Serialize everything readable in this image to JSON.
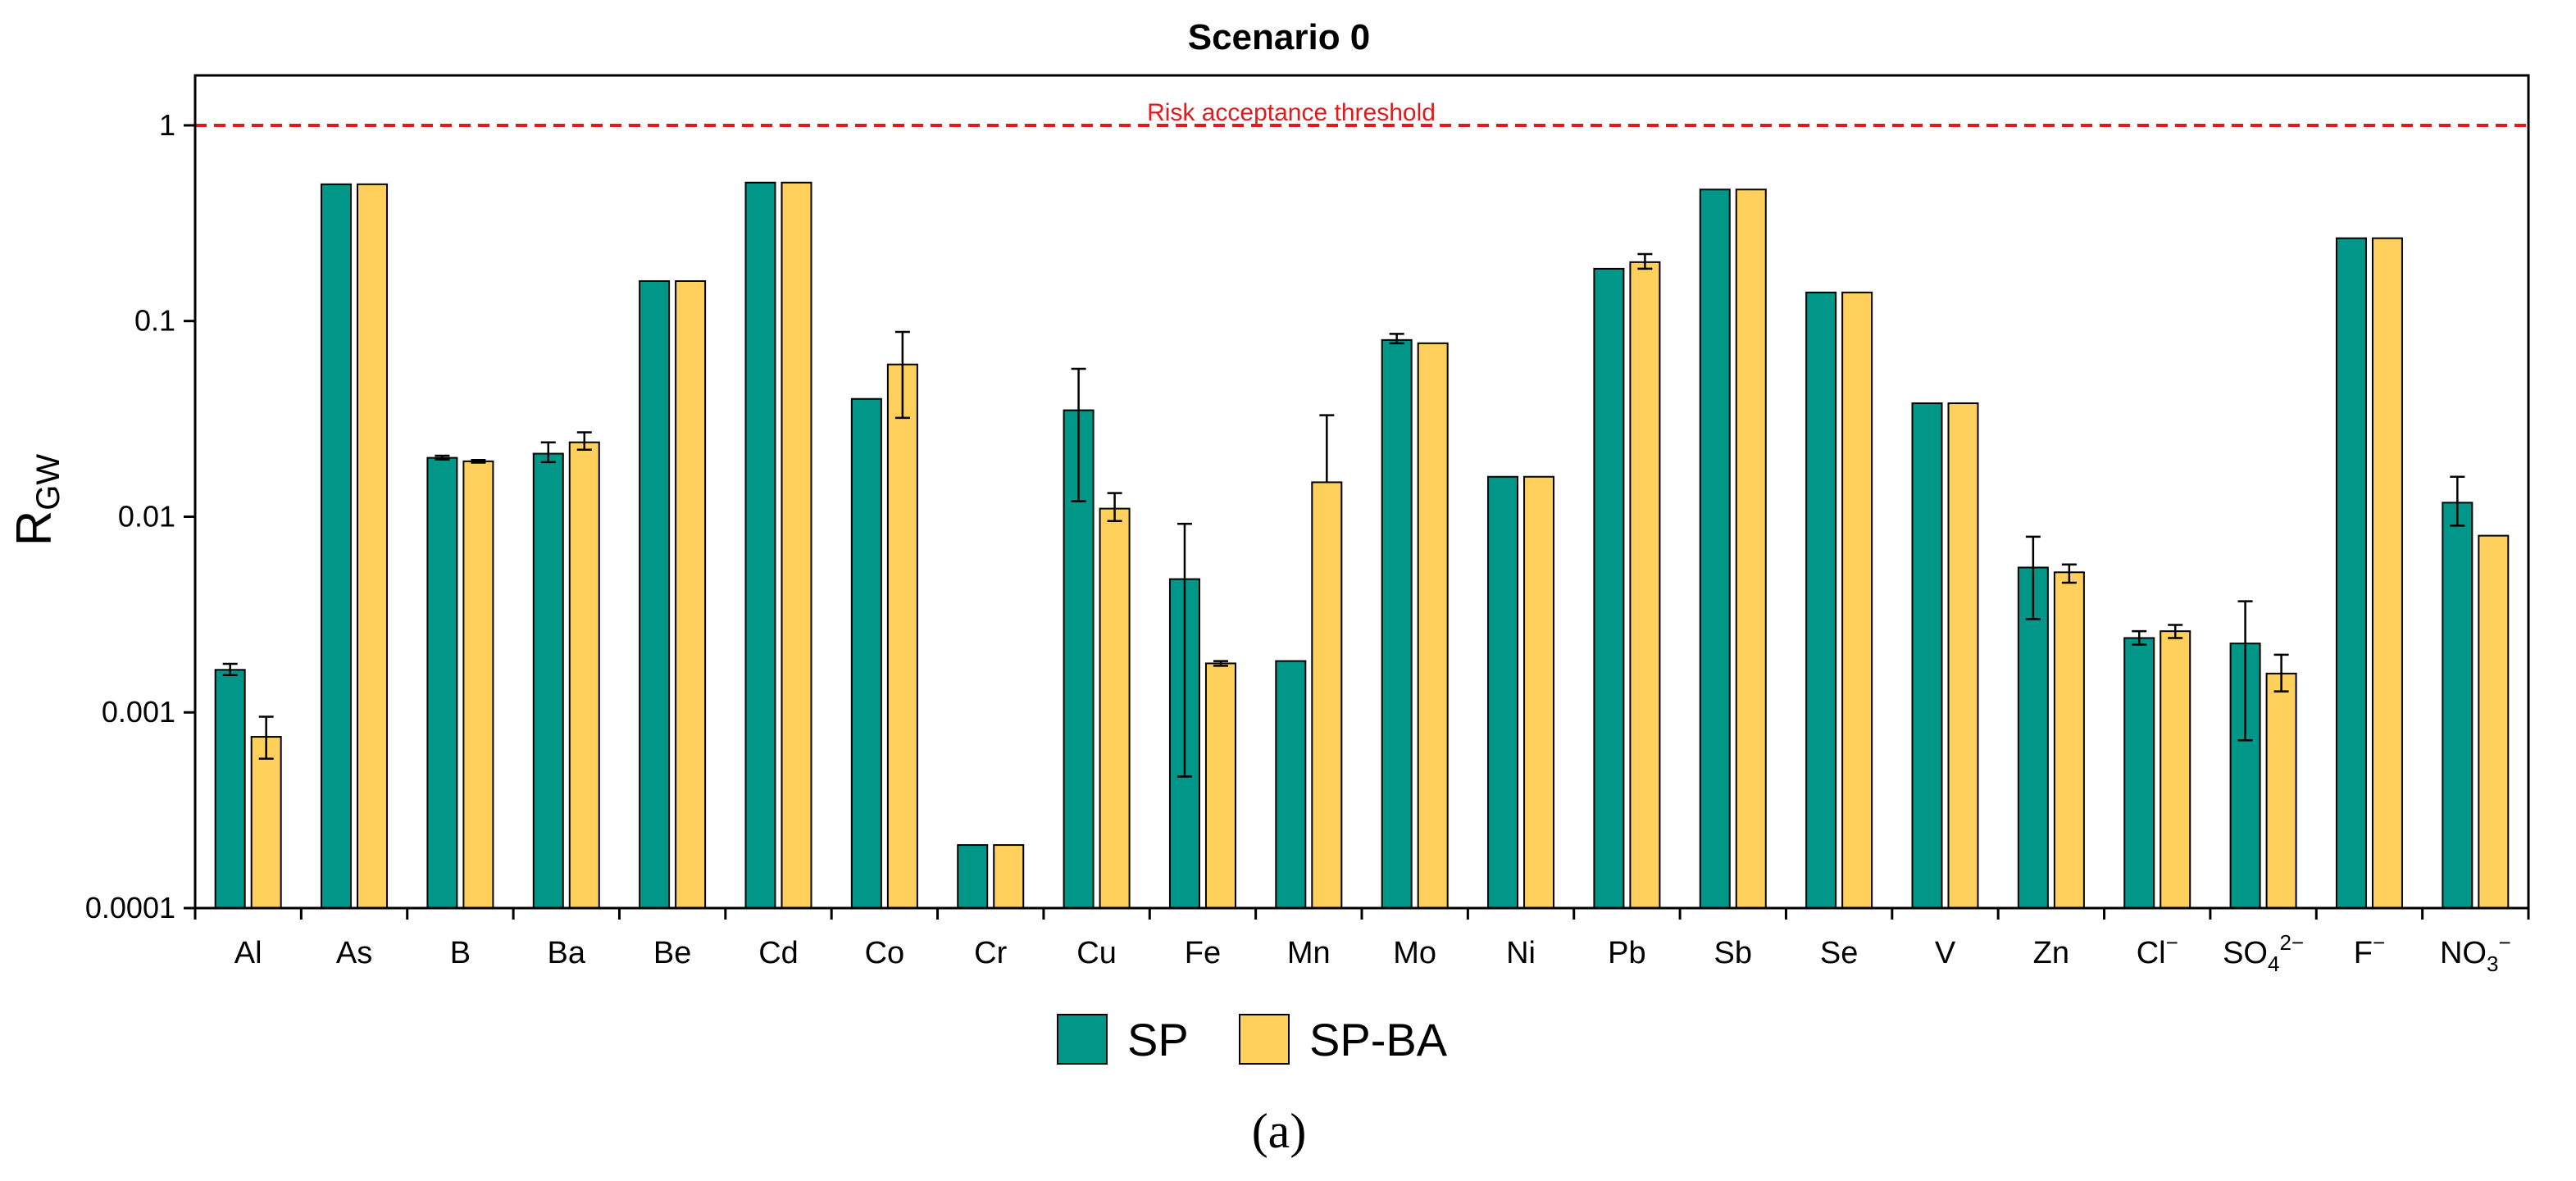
{
  "chart_data": {
    "type": "bar",
    "title": "Scenario 0",
    "ylabel": {
      "main": "R",
      "sub": "GW"
    },
    "yscale": "log",
    "ylim": [
      0.0001,
      1.8
    ],
    "ytick_values": [
      0.0001,
      0.001,
      0.01,
      0.1,
      1
    ],
    "ytick_labels": [
      "0.0001",
      "0.001",
      "0.01",
      "0.1",
      "1"
    ],
    "categories": [
      {
        "base": "Al",
        "sub": "",
        "sup": ""
      },
      {
        "base": "As",
        "sub": "",
        "sup": ""
      },
      {
        "base": "B",
        "sub": "",
        "sup": ""
      },
      {
        "base": "Ba",
        "sub": "",
        "sup": ""
      },
      {
        "base": "Be",
        "sub": "",
        "sup": ""
      },
      {
        "base": "Cd",
        "sub": "",
        "sup": ""
      },
      {
        "base": "Co",
        "sub": "",
        "sup": ""
      },
      {
        "base": "Cr",
        "sub": "",
        "sup": ""
      },
      {
        "base": "Cu",
        "sub": "",
        "sup": ""
      },
      {
        "base": "Fe",
        "sub": "",
        "sup": ""
      },
      {
        "base": "Mn",
        "sub": "",
        "sup": ""
      },
      {
        "base": "Mo",
        "sub": "",
        "sup": ""
      },
      {
        "base": "Ni",
        "sub": "",
        "sup": ""
      },
      {
        "base": "Pb",
        "sub": "",
        "sup": ""
      },
      {
        "base": "Sb",
        "sub": "",
        "sup": ""
      },
      {
        "base": "Se",
        "sub": "",
        "sup": ""
      },
      {
        "base": "V",
        "sub": "",
        "sup": ""
      },
      {
        "base": "Zn",
        "sub": "",
        "sup": ""
      },
      {
        "base": "Cl",
        "sub": "",
        "sup": "−"
      },
      {
        "base": "SO",
        "sub": "4",
        "sup": "2−"
      },
      {
        "base": "F",
        "sub": "",
        "sup": "−"
      },
      {
        "base": "NO",
        "sub": "3",
        "sup": "−"
      }
    ],
    "series": [
      {
        "name": "SP",
        "color": "#009688",
        "values": [
          0.00165,
          0.5,
          0.02,
          0.021,
          0.16,
          0.51,
          0.04,
          0.00021,
          0.035,
          0.0048,
          0.00183,
          0.08,
          0.016,
          0.185,
          0.47,
          0.14,
          0.038,
          0.0055,
          0.0024,
          0.00225,
          0.265,
          0.0118
        ],
        "err_low": [
          0.00155,
          null,
          0.0196,
          0.019,
          null,
          null,
          null,
          null,
          0.012,
          0.00047,
          null,
          0.077,
          null,
          null,
          null,
          null,
          null,
          0.003,
          0.00222,
          0.00072,
          null,
          0.009
        ],
        "err_high": [
          0.00177,
          null,
          0.0205,
          0.024,
          null,
          null,
          null,
          null,
          0.057,
          0.0092,
          null,
          0.086,
          null,
          null,
          null,
          null,
          null,
          0.0079,
          0.0026,
          0.0037,
          null,
          0.016
        ]
      },
      {
        "name": "SP-BA",
        "color": "#FFD15C",
        "values": [
          0.00075,
          0.5,
          0.0192,
          0.024,
          0.16,
          0.51,
          0.06,
          0.00021,
          0.011,
          0.00178,
          0.015,
          0.077,
          0.016,
          0.2,
          0.47,
          0.14,
          0.038,
          0.0052,
          0.0026,
          0.00158,
          0.265,
          0.008
        ],
        "err_low": [
          0.00058,
          null,
          0.0189,
          0.022,
          null,
          null,
          0.032,
          null,
          0.0095,
          0.00173,
          null,
          null,
          null,
          0.185,
          null,
          null,
          null,
          0.0046,
          0.0024,
          0.00128,
          null,
          null
        ],
        "err_high": [
          0.00095,
          null,
          0.0195,
          0.027,
          null,
          null,
          0.088,
          null,
          0.0132,
          0.00183,
          0.033,
          null,
          null,
          0.22,
          null,
          null,
          null,
          0.0057,
          0.0028,
          0.00197,
          null,
          null
        ]
      }
    ],
    "threshold": {
      "value": 1,
      "label": "Risk acceptance threshold",
      "color": "#E31A1C"
    },
    "legend_position": "bottom",
    "grid": false
  },
  "caption": "(a)"
}
